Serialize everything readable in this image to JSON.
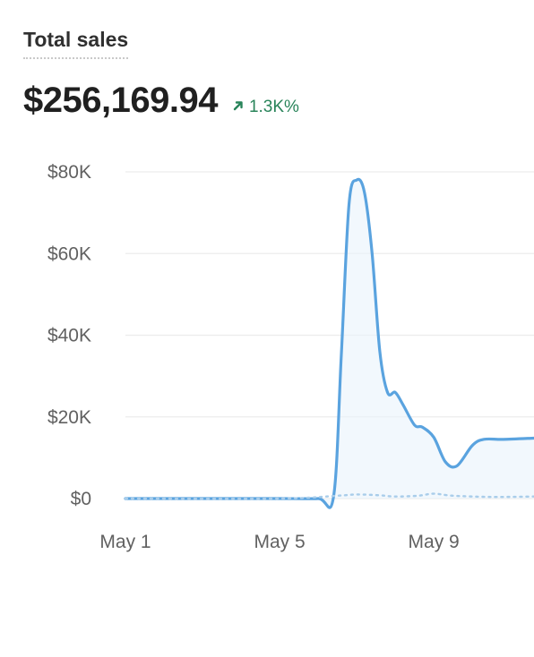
{
  "card": {
    "title": "Total sales",
    "value": "$256,169.94",
    "delta": "1.3K%",
    "delta_direction": "up",
    "delta_icon": "arrow-up-right-icon"
  },
  "colors": {
    "line": "#5aa3df",
    "comparison": "#a9cdea",
    "delta": "#29845a",
    "grid": "#ececec"
  },
  "chart_data": {
    "type": "line",
    "title": "Total sales",
    "xlabel": "",
    "ylabel": "",
    "ylim": [
      0,
      80000
    ],
    "yticks": [
      0,
      20000,
      40000,
      60000,
      80000
    ],
    "ytick_labels": [
      "$0",
      "$20K",
      "$40K",
      "$60K",
      "$80K"
    ],
    "xticks": [
      1,
      5,
      9
    ],
    "xtick_labels": [
      "May 1",
      "May 5",
      "May 9"
    ],
    "xlim": [
      1,
      11.6
    ],
    "grid": true,
    "series": [
      {
        "style": "solid",
        "points": [
          [
            1.0,
            0
          ],
          [
            2.0,
            0
          ],
          [
            3.0,
            0
          ],
          [
            4.0,
            0
          ],
          [
            5.0,
            0
          ],
          [
            6.0,
            0
          ],
          [
            6.4,
            500
          ],
          [
            6.6,
            35000
          ],
          [
            6.8,
            72000
          ],
          [
            7.0,
            78000
          ],
          [
            7.2,
            75000
          ],
          [
            7.4,
            60000
          ],
          [
            7.6,
            36000
          ],
          [
            7.8,
            26000
          ],
          [
            8.0,
            26000
          ],
          [
            8.2,
            23000
          ],
          [
            8.5,
            18000
          ],
          [
            8.7,
            17500
          ],
          [
            9.0,
            15000
          ],
          [
            9.3,
            9000
          ],
          [
            9.6,
            8000
          ],
          [
            10.0,
            13000
          ],
          [
            10.3,
            14500
          ],
          [
            10.8,
            14500
          ],
          [
            11.6,
            14800
          ]
        ]
      },
      {
        "style": "dotted",
        "points": [
          [
            1.0,
            0
          ],
          [
            5.0,
            0
          ],
          [
            6.5,
            700
          ],
          [
            7.0,
            1000
          ],
          [
            7.6,
            800
          ],
          [
            8.0,
            500
          ],
          [
            8.6,
            700
          ],
          [
            9.0,
            1200
          ],
          [
            9.5,
            700
          ],
          [
            10.5,
            400
          ],
          [
            11.6,
            500
          ]
        ]
      }
    ]
  }
}
